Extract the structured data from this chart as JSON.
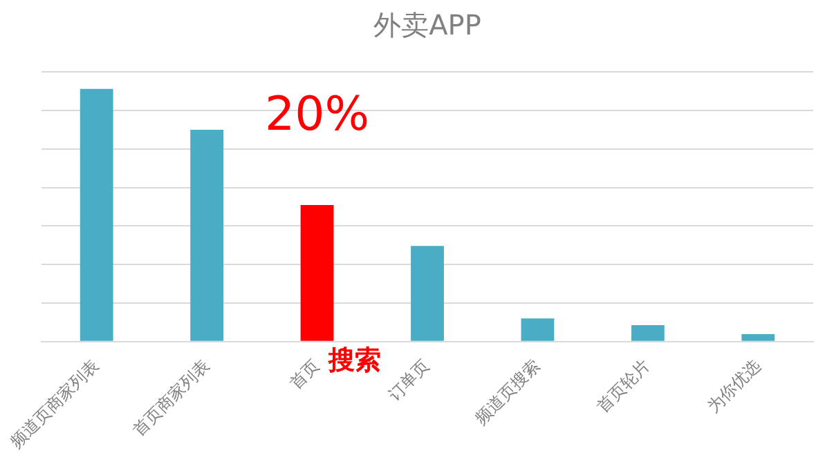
{
  "chart_data": {
    "type": "bar",
    "title": "外卖APP",
    "ylim": [
      0,
      39.5
    ],
    "yticks": [
      {
        "value": 0,
        "label": null
      },
      {
        "value": 5.64,
        "label": null
      },
      {
        "value": 11.29,
        "label": null
      },
      {
        "value": 16.93,
        "label": null
      },
      {
        "value": 22.57,
        "label": null
      },
      {
        "value": 28.21,
        "label": null
      },
      {
        "value": 33.86,
        "label": null
      },
      {
        "value": 39.5,
        "label": null
      }
    ],
    "tick_labels": "x",
    "categories": [
      "频道页商家列表",
      "首页商家列表",
      "首页",
      "订单页",
      "频道页搜索",
      "首页轮片",
      "为你优选"
    ],
    "values": [
      37,
      31,
      20,
      14,
      3.4,
      2.4,
      1.1
    ],
    "colors": [
      "#4bacc6",
      "#4bacc6",
      "#ff0000",
      "#4bacc6",
      "#4bacc6",
      "#4bacc6",
      "#4bacc6"
    ],
    "value_labels": [
      null,
      null,
      "20%",
      null,
      null,
      null,
      null
    ],
    "annotations": [
      "搜索"
    ],
    "grid": "y",
    "legend": false
  }
}
